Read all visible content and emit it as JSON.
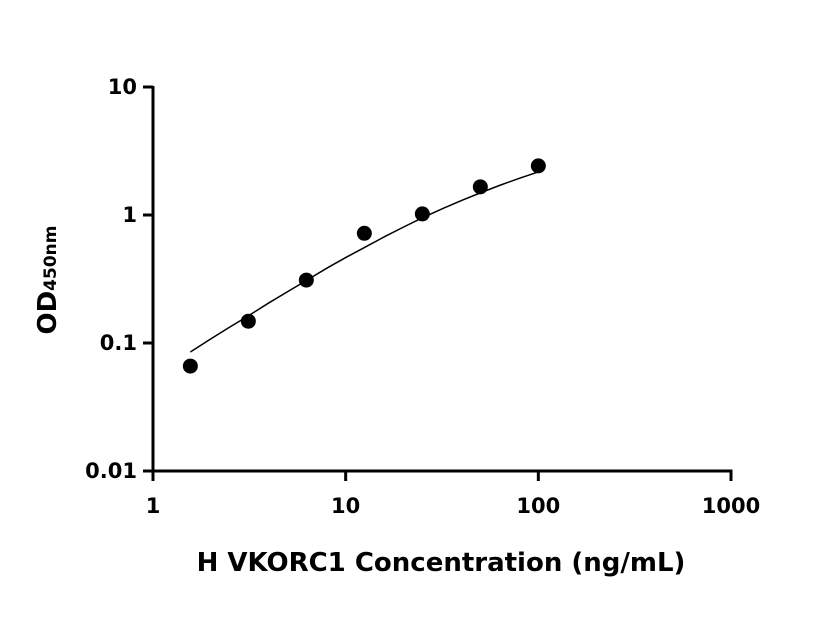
{
  "chart_data": {
    "type": "scatter",
    "xscale": "log",
    "yscale": "log",
    "xlim": [
      1,
      1000
    ],
    "ylim": [
      0.01,
      10
    ],
    "xticks": [
      {
        "value": 1,
        "label": "1"
      },
      {
        "value": 10,
        "label": "10"
      },
      {
        "value": 100,
        "label": "100"
      },
      {
        "value": 1000,
        "label": "1000"
      }
    ],
    "yticks": [
      {
        "value": 10,
        "label": "10"
      },
      {
        "value": 1,
        "label": "1"
      },
      {
        "value": 0.1,
        "label": "0.1"
      },
      {
        "value": 0.01,
        "label": "0.01"
      }
    ],
    "xlabel": "H VKORC1 Concentration (ng/mL)",
    "ylabel": {
      "main": "OD",
      "sub": "450nm"
    },
    "grid": false,
    "legend": "none",
    "series": [
      {
        "points": [
          {
            "x": 1.5625,
            "y": 0.066
          },
          {
            "x": 3.125,
            "y": 0.148
          },
          {
            "x": 6.25,
            "y": 0.31
          },
          {
            "x": 12.5,
            "y": 0.72
          },
          {
            "x": 25,
            "y": 1.02
          },
          {
            "x": 50,
            "y": 1.66
          },
          {
            "x": 100,
            "y": 2.42
          }
        ],
        "marker_color": "#000000"
      }
    ],
    "fit_curve": {
      "x": [
        1.5625,
        2.0,
        2.5,
        3.125,
        4.0,
        5.0,
        6.25,
        8.0,
        10.0,
        12.5,
        16.0,
        20.0,
        25.0,
        32.0,
        40.0,
        50.0,
        63.0,
        80.0,
        100.0
      ],
      "y": [
        0.085,
        0.108,
        0.133,
        0.163,
        0.206,
        0.252,
        0.308,
        0.385,
        0.465,
        0.557,
        0.68,
        0.806,
        0.95,
        1.126,
        1.299,
        1.489,
        1.704,
        1.94,
        2.17
      ],
      "color": "#000000"
    }
  }
}
